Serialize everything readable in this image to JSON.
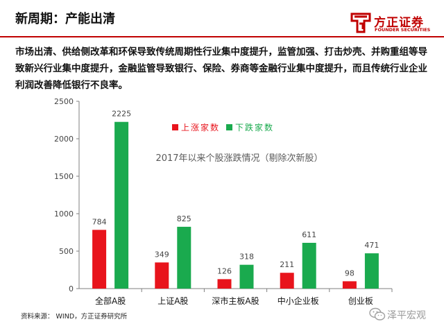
{
  "header": {
    "title": "新周期：产能出清",
    "logo_cn": "方正证券",
    "logo_en": "FOUNDER SECURITIES"
  },
  "description": "市场出清、供给侧改革和环保导致传统周期性行业集中度提升，监管加强、打击炒壳、并购重组等导致新兴行业集中度提升，金融监管导致银行、保险、券商等金融行业集中度提升，而且传统行业企业利润改善降低银行不良率。",
  "footer": {
    "source": "资料来源： WIND，方正证券研究所",
    "watermark": "泽平宏观"
  },
  "colors": {
    "rise": "#e8141c",
    "fall": "#1aaa4e",
    "brand": "#c00000"
  },
  "chart_data": {
    "type": "bar",
    "title": "2017年以来个股涨跌情况（剔除次新股）",
    "categories": [
      "全部A股",
      "上证A股",
      "深市主板A股",
      "中小企业板",
      "创业板"
    ],
    "series": [
      {
        "name": "上涨家数",
        "values": [
          784,
          349,
          126,
          211,
          98
        ],
        "color": "#e8141c"
      },
      {
        "name": "下跌家数",
        "values": [
          2225,
          825,
          318,
          611,
          471
        ],
        "color": "#1aaa4e"
      }
    ],
    "yticks": [
      0,
      500,
      1000,
      1500,
      2000,
      2500
    ],
    "ylim": [
      0,
      2500
    ],
    "xlabel": "",
    "ylabel": "",
    "legend_position": "top-center",
    "grid": false,
    "data_labels": true
  }
}
